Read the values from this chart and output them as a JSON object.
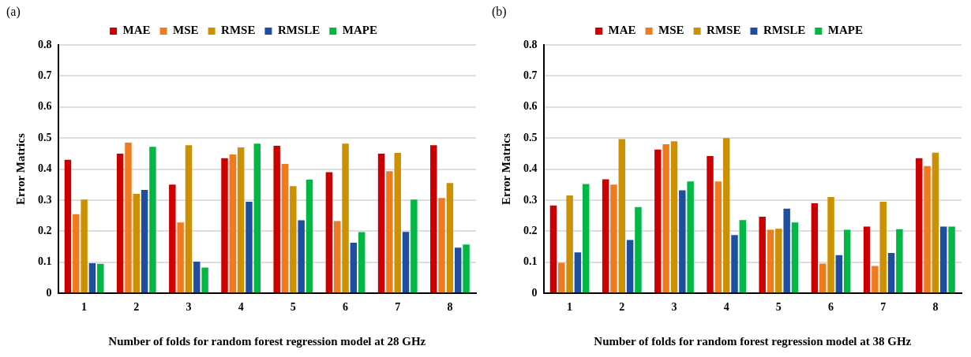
{
  "chart_data": [
    {
      "type": "bar",
      "annotations": [
        "(a)"
      ],
      "xlabel": "Number of folds for random forest regression model at 28 GHz",
      "ylabel": "Error Matrics",
      "categories": [
        "1",
        "2",
        "3",
        "4",
        "5",
        "6",
        "7",
        "8"
      ],
      "series": [
        {
          "name": "MAE",
          "color": "#cc0000",
          "values": [
            0.43,
            0.45,
            0.35,
            0.435,
            0.475,
            0.39,
            0.45,
            0.477
          ]
        },
        {
          "name": "MSE",
          "color": "#f07b1e",
          "values": [
            0.255,
            0.485,
            0.228,
            0.447,
            0.417,
            0.233,
            0.393,
            0.307
          ]
        },
        {
          "name": "RMSE",
          "color": "#cc9000",
          "values": [
            0.302,
            0.32,
            0.477,
            0.47,
            0.345,
            0.482,
            0.452,
            0.355
          ]
        },
        {
          "name": "RMSLE",
          "color": "#1f4ea0",
          "values": [
            0.097,
            0.333,
            0.102,
            0.295,
            0.235,
            0.163,
            0.198,
            0.147
          ]
        },
        {
          "name": "MAPE",
          "color": "#00b843",
          "values": [
            0.095,
            0.472,
            0.083,
            0.482,
            0.366,
            0.197,
            0.302,
            0.157
          ]
        }
      ],
      "ylim": [
        0,
        0.8
      ],
      "yticks": [
        0,
        0.1,
        0.2,
        0.3,
        0.4,
        0.5,
        0.6,
        0.7,
        0.8
      ],
      "grid": "y",
      "legend": "top"
    },
    {
      "type": "bar",
      "annotations": [
        "(b)"
      ],
      "xlabel": "Number of folds for random forest regression model at 38 GHz",
      "ylabel": "Error Matrics",
      "categories": [
        "1",
        "2",
        "3",
        "4",
        "5",
        "6",
        "7",
        "8"
      ],
      "series": [
        {
          "name": "MAE",
          "color": "#cc0000",
          "values": [
            0.283,
            0.367,
            0.463,
            0.442,
            0.247,
            0.29,
            0.215,
            0.435
          ]
        },
        {
          "name": "MSE",
          "color": "#f07b1e",
          "values": [
            0.098,
            0.35,
            0.48,
            0.36,
            0.205,
            0.096,
            0.088,
            0.41
          ]
        },
        {
          "name": "RMSE",
          "color": "#cc9000",
          "values": [
            0.315,
            0.497,
            0.49,
            0.5,
            0.208,
            0.31,
            0.295,
            0.453
          ]
        },
        {
          "name": "RMSLE",
          "color": "#1f4ea0",
          "values": [
            0.132,
            0.172,
            0.332,
            0.188,
            0.273,
            0.123,
            0.13,
            0.215
          ]
        },
        {
          "name": "MAPE",
          "color": "#00b843",
          "values": [
            0.352,
            0.278,
            0.36,
            0.236,
            0.228,
            0.205,
            0.207,
            0.215
          ]
        }
      ],
      "ylim": [
        0,
        0.8
      ],
      "yticks": [
        0,
        0.1,
        0.2,
        0.3,
        0.4,
        0.5,
        0.6,
        0.7,
        0.8
      ],
      "grid": "y",
      "legend": "top"
    }
  ]
}
